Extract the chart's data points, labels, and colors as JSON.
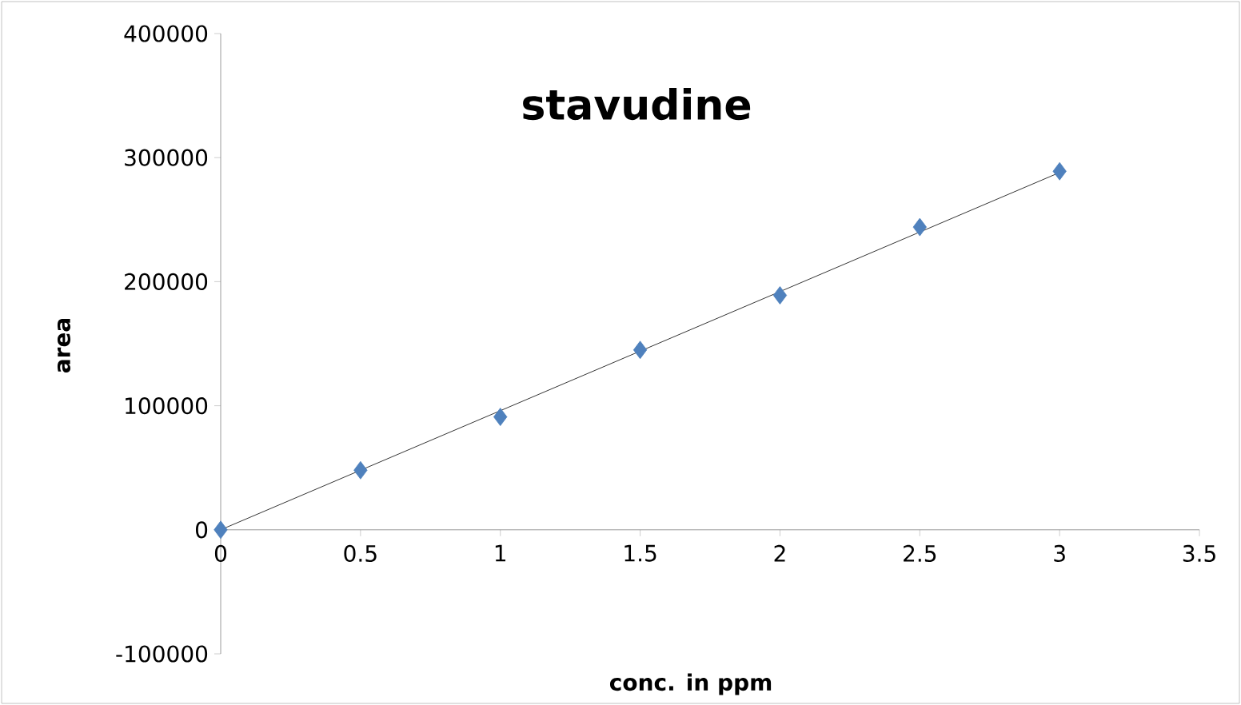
{
  "chart_data": {
    "type": "scatter",
    "title": "stavudine",
    "xlabel": "conc. in ppm",
    "ylabel": "area",
    "x": [
      0,
      0.5,
      1,
      1.5,
      2,
      2.5,
      3
    ],
    "series": [
      {
        "color": "#4f81bd",
        "marker": "diamond",
        "values": [
          0,
          48000,
          91000,
          145000,
          189000,
          244000,
          289000
        ]
      },
      {
        "type": "line",
        "color": "#000000",
        "marker": "none",
        "x": [
          0,
          3
        ],
        "values": [
          0,
          288000
        ]
      }
    ],
    "xlim": [
      0,
      3.5
    ],
    "xticks": [
      0,
      0.5,
      1,
      1.5,
      2,
      2.5,
      3,
      3.5
    ],
    "ylim": [
      -100000,
      400000
    ],
    "yticks": [
      -100000,
      0,
      100000,
      200000,
      300000,
      400000
    ],
    "grid": false
  }
}
